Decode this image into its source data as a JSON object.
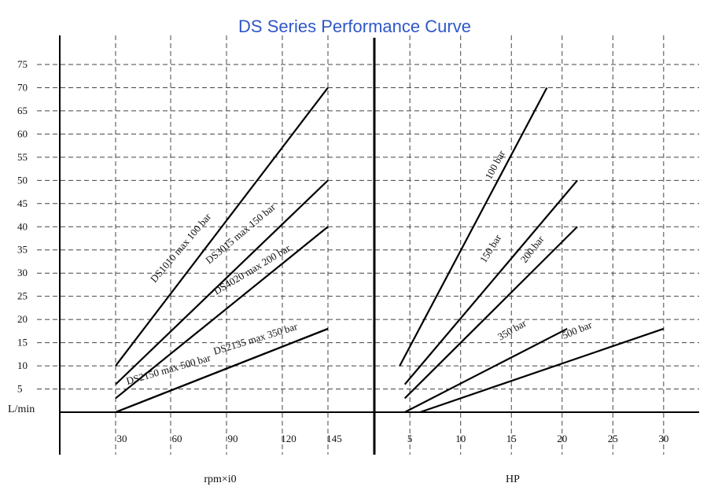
{
  "title": "DS Series Performance Curve",
  "colors": {
    "title": "#2f57c8",
    "line": "#000000",
    "grid": "#444444"
  },
  "chart_data": [
    {
      "type": "line",
      "title": "DS Series Performance Curve",
      "xlabel": "rpm×i0",
      "ylabel": "L/min",
      "ylim": [
        0,
        75
      ],
      "y_ticks": [
        5,
        10,
        15,
        20,
        25,
        30,
        35,
        40,
        45,
        50,
        55,
        60,
        65,
        70,
        75
      ],
      "categories": [
        "30",
        "60",
        "90",
        "120",
        "145"
      ],
      "grid": true,
      "series": [
        {
          "name": "DS1010 max 100 bar",
          "x": [
            "30",
            "145"
          ],
          "y": [
            10,
            70
          ]
        },
        {
          "name": "DS3015 max 150 bar",
          "x": [
            "30",
            "145"
          ],
          "y": [
            6,
            50
          ]
        },
        {
          "name": "DS4020 max 200 bar",
          "x": [
            "30",
            "145"
          ],
          "y": [
            3,
            40
          ]
        },
        {
          "name": "DS2135 max 350 bar",
          "x": [
            "30",
            "145"
          ],
          "y": [
            0,
            18
          ]
        },
        {
          "name": "DS2150 max 500 bar",
          "x": [
            "30",
            "145"
          ],
          "y": [
            0,
            18
          ]
        }
      ]
    },
    {
      "type": "line",
      "xlabel": "HP",
      "ylabel": "L/min",
      "ylim": [
        0,
        75
      ],
      "xlim": [
        1.5,
        33.5
      ],
      "x_ticks": [
        5,
        10,
        15,
        20,
        25,
        30
      ],
      "grid": true,
      "series": [
        {
          "name": "100 bar",
          "x": [
            4,
            18.5
          ],
          "y": [
            10,
            70
          ]
        },
        {
          "name": "150 bar",
          "x": [
            4.5,
            21.5
          ],
          "y": [
            6,
            50
          ]
        },
        {
          "name": "200 bar",
          "x": [
            4.5,
            21.5
          ],
          "y": [
            3,
            40
          ]
        },
        {
          "name": "350 bar",
          "x": [
            4.5,
            20.5
          ],
          "y": [
            0,
            18
          ]
        },
        {
          "name": "500 bar",
          "x": [
            6,
            30
          ],
          "y": [
            0,
            18
          ]
        }
      ]
    }
  ],
  "labels": {
    "left": {
      "ds1010": "DS1010 max 100 bar",
      "ds3015": "DS3015 max 150 bar",
      "ds4020": "DS4020 max 200 bar",
      "ds2135": "DS2135 max 350 bar",
      "ds2150": "DS2150 max 500 bar"
    },
    "right": {
      "p100": "100 bar",
      "p150": "150 bar",
      "p200": "200 bar",
      "p350": "350 bar",
      "p500": "500 bar"
    }
  }
}
